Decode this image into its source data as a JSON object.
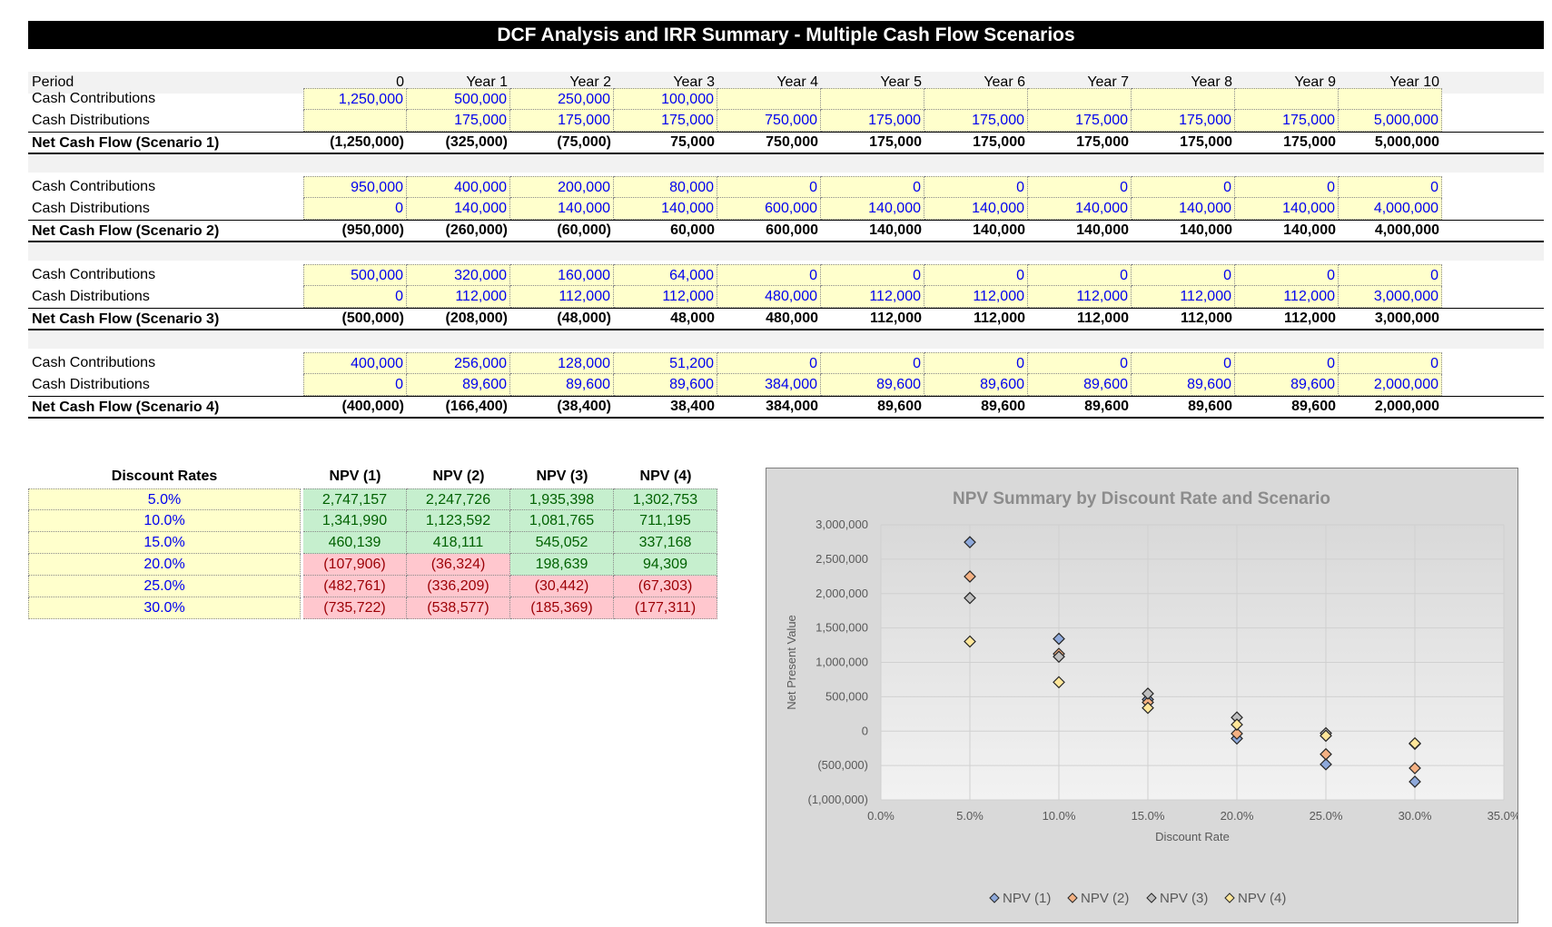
{
  "title": "DCF Analysis and IRR Summary - Multiple Cash Flow Scenarios",
  "period": {
    "label": "Period",
    "columns": [
      "0",
      "Year 1",
      "Year 2",
      "Year 3",
      "Year 4",
      "Year 5",
      "Year 6",
      "Year 7",
      "Year 8",
      "Year 9",
      "Year 10"
    ]
  },
  "scenarios": [
    {
      "contributions_label": "Cash Contributions",
      "contributions": [
        "1,250,000",
        "500,000",
        "250,000",
        "100,000",
        "",
        "",
        "",
        "",
        "",
        "",
        ""
      ],
      "distributions_label": "Cash Distributions",
      "distributions": [
        "",
        "175,000",
        "175,000",
        "175,000",
        "750,000",
        "175,000",
        "175,000",
        "175,000",
        "175,000",
        "175,000",
        "5,000,000"
      ],
      "net_label": "Net Cash Flow (Scenario 1)",
      "net": [
        "(1,250,000)",
        "(325,000)",
        "(75,000)",
        "75,000",
        "750,000",
        "175,000",
        "175,000",
        "175,000",
        "175,000",
        "175,000",
        "5,000,000"
      ]
    },
    {
      "contributions_label": "Cash Contributions",
      "contributions": [
        "950,000",
        "400,000",
        "200,000",
        "80,000",
        "0",
        "0",
        "0",
        "0",
        "0",
        "0",
        "0"
      ],
      "distributions_label": "Cash Distributions",
      "distributions": [
        "0",
        "140,000",
        "140,000",
        "140,000",
        "600,000",
        "140,000",
        "140,000",
        "140,000",
        "140,000",
        "140,000",
        "4,000,000"
      ],
      "net_label": "Net Cash Flow (Scenario 2)",
      "net": [
        "(950,000)",
        "(260,000)",
        "(60,000)",
        "60,000",
        "600,000",
        "140,000",
        "140,000",
        "140,000",
        "140,000",
        "140,000",
        "4,000,000"
      ]
    },
    {
      "contributions_label": "Cash Contributions",
      "contributions": [
        "500,000",
        "320,000",
        "160,000",
        "64,000",
        "0",
        "0",
        "0",
        "0",
        "0",
        "0",
        "0"
      ],
      "distributions_label": "Cash Distributions",
      "distributions": [
        "0",
        "112,000",
        "112,000",
        "112,000",
        "480,000",
        "112,000",
        "112,000",
        "112,000",
        "112,000",
        "112,000",
        "3,000,000"
      ],
      "net_label": "Net Cash Flow (Scenario 3)",
      "net": [
        "(500,000)",
        "(208,000)",
        "(48,000)",
        "48,000",
        "480,000",
        "112,000",
        "112,000",
        "112,000",
        "112,000",
        "112,000",
        "3,000,000"
      ]
    },
    {
      "contributions_label": "Cash Contributions",
      "contributions": [
        "400,000",
        "256,000",
        "128,000",
        "51,200",
        "0",
        "0",
        "0",
        "0",
        "0",
        "0",
        "0"
      ],
      "distributions_label": "Cash Distributions",
      "distributions": [
        "0",
        "89,600",
        "89,600",
        "89,600",
        "384,000",
        "89,600",
        "89,600",
        "89,600",
        "89,600",
        "89,600",
        "2,000,000"
      ],
      "net_label": "Net Cash Flow (Scenario 4)",
      "net": [
        "(400,000)",
        "(166,400)",
        "(38,400)",
        "38,400",
        "384,000",
        "89,600",
        "89,600",
        "89,600",
        "89,600",
        "89,600",
        "2,000,000"
      ]
    }
  ],
  "npv_table": {
    "headers": [
      "Discount Rates",
      "NPV (1)",
      "NPV (2)",
      "NPV (3)",
      "NPV (4)"
    ],
    "rows": [
      {
        "rate": "5.0%",
        "values": [
          "2,747,157",
          "2,247,726",
          "1,935,398",
          "1,302,753"
        ]
      },
      {
        "rate": "10.0%",
        "values": [
          "1,341,990",
          "1,123,592",
          "1,081,765",
          "711,195"
        ]
      },
      {
        "rate": "15.0%",
        "values": [
          "460,139",
          "418,111",
          "545,052",
          "337,168"
        ]
      },
      {
        "rate": "20.0%",
        "values": [
          "(107,906)",
          "(36,324)",
          "198,639",
          "94,309"
        ]
      },
      {
        "rate": "25.0%",
        "values": [
          "(482,761)",
          "(336,209)",
          "(30,442)",
          "(67,303)"
        ]
      },
      {
        "rate": "30.0%",
        "values": [
          "(735,722)",
          "(538,577)",
          "(185,369)",
          "(177,311)"
        ]
      }
    ]
  },
  "colors": {
    "input_fill": "#ffffcc",
    "input_text": "#0000ee",
    "positive_fill": "#c6efce",
    "negative_fill": "#ffc7ce",
    "series": [
      "#8ea9db",
      "#f4b183",
      "#bfbfbf",
      "#ffe699"
    ]
  },
  "chart_data": {
    "type": "scatter",
    "title": "NPV Summary by Discount Rate and Scenario",
    "xlabel": "Discount Rate",
    "ylabel": "Net Present Value",
    "xlim": [
      0,
      0.35
    ],
    "ylim": [
      -1000000,
      3000000
    ],
    "x_ticks": [
      "0.0%",
      "5.0%",
      "10.0%",
      "15.0%",
      "20.0%",
      "25.0%",
      "30.0%",
      "35.0%"
    ],
    "y_ticks": [
      "3,000,000",
      "2,500,000",
      "2,000,000",
      "1,500,000",
      "1,000,000",
      "500,000",
      "0",
      "(500,000)",
      "(1,000,000)"
    ],
    "grid": true,
    "legend": "bottom",
    "marker": "diamond",
    "x": [
      0.05,
      0.1,
      0.15,
      0.2,
      0.25,
      0.3
    ],
    "series": [
      {
        "name": "NPV (1)",
        "values": [
          2747157,
          1341990,
          460139,
          -107906,
          -482761,
          -735722
        ]
      },
      {
        "name": "NPV (2)",
        "values": [
          2247726,
          1123592,
          418111,
          -36324,
          -336209,
          -538577
        ]
      },
      {
        "name": "NPV (3)",
        "values": [
          1935398,
          1081765,
          545052,
          198639,
          -30442,
          -185369
        ]
      },
      {
        "name": "NPV (4)",
        "values": [
          1302753,
          711195,
          337168,
          94309,
          -67303,
          -177311
        ]
      }
    ]
  }
}
